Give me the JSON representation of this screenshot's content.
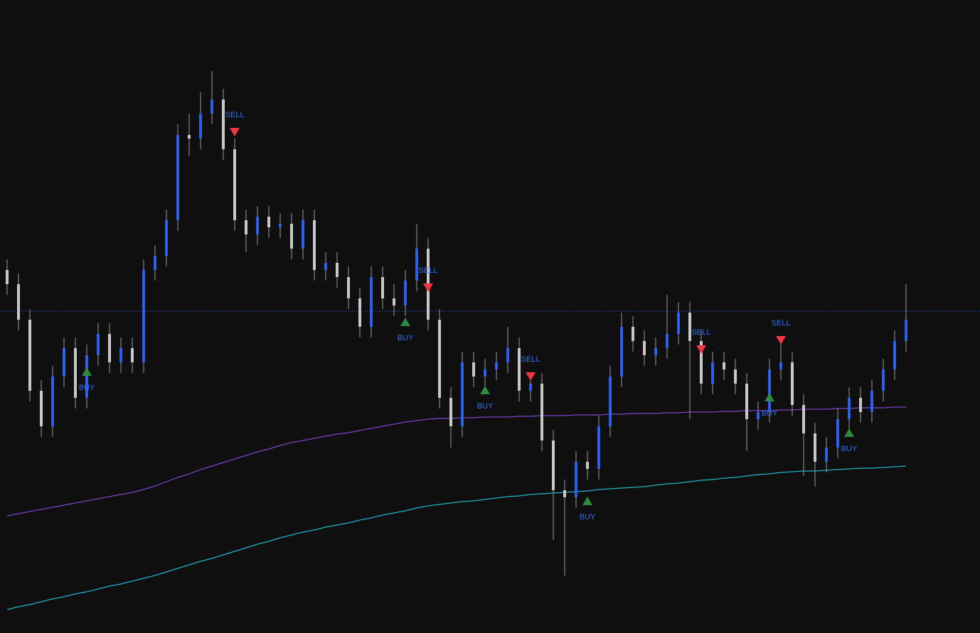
{
  "chart_data": {
    "type": "candlestick",
    "ylim": [
      0,
      891
    ],
    "up_color": "#2f5fe8",
    "down_color": "#c8c8c8",
    "open": [
      511,
      491,
      441,
      341,
      291,
      361,
      401,
      331,
      391,
      421,
      381,
      401,
      381,
      511,
      531,
      581,
      701,
      696,
      731,
      751,
      681,
      581,
      561,
      586,
      571,
      576,
      541,
      581,
      511,
      521,
      501,
      471,
      431,
      501,
      471,
      461,
      496,
      541,
      441,
      331,
      291,
      381,
      361,
      371,
      381,
      401,
      341,
      351,
      271,
      201,
      191,
      241,
      231,
      291,
      361,
      431,
      411,
      391,
      401,
      421,
      451,
      411,
      351,
      381,
      371,
      351,
      301,
      311,
      371,
      381,
      321,
      281,
      241,
      261,
      301,
      331,
      311,
      341,
      371,
      411
    ],
    "high": [
      526,
      506,
      456,
      356,
      376,
      416,
      416,
      406,
      436,
      436,
      416,
      416,
      526,
      546,
      596,
      716,
      731,
      761,
      791,
      766,
      696,
      596,
      601,
      601,
      591,
      591,
      596,
      596,
      536,
      536,
      516,
      486,
      516,
      516,
      491,
      511,
      576,
      556,
      456,
      346,
      396,
      396,
      386,
      396,
      431,
      416,
      366,
      366,
      286,
      216,
      256,
      256,
      306,
      376,
      451,
      446,
      426,
      416,
      476,
      466,
      466,
      426,
      396,
      396,
      386,
      366,
      326,
      386,
      411,
      396,
      336,
      296,
      276,
      316,
      346,
      346,
      356,
      386,
      426,
      491
    ],
    "low": [
      476,
      426,
      326,
      276,
      276,
      346,
      316,
      316,
      376,
      366,
      366,
      366,
      366,
      496,
      516,
      566,
      671,
      681,
      716,
      666,
      566,
      536,
      546,
      556,
      556,
      526,
      526,
      496,
      496,
      486,
      456,
      416,
      416,
      456,
      446,
      446,
      481,
      426,
      316,
      261,
      276,
      346,
      346,
      356,
      366,
      326,
      326,
      256,
      131,
      81,
      176,
      216,
      216,
      276,
      346,
      396,
      376,
      376,
      386,
      406,
      301,
      336,
      336,
      356,
      336,
      256,
      286,
      296,
      356,
      306,
      221,
      206,
      226,
      246,
      286,
      296,
      296,
      326,
      356,
      396
    ],
    "close": [
      491,
      441,
      341,
      291,
      361,
      401,
      331,
      391,
      421,
      381,
      401,
      381,
      511,
      531,
      581,
      701,
      696,
      731,
      751,
      681,
      581,
      561,
      586,
      571,
      576,
      541,
      581,
      511,
      521,
      501,
      471,
      431,
      501,
      471,
      461,
      496,
      541,
      441,
      331,
      291,
      381,
      361,
      371,
      381,
      401,
      341,
      351,
      271,
      201,
      191,
      241,
      231,
      291,
      361,
      431,
      411,
      391,
      401,
      421,
      451,
      411,
      351,
      381,
      371,
      351,
      301,
      311,
      371,
      381,
      321,
      281,
      241,
      261,
      301,
      331,
      311,
      341,
      371,
      411,
      441
    ],
    "series": [
      {
        "color": "#7b45c9",
        "values": [
          165,
          168,
          171,
          174,
          177,
          180,
          183,
          186,
          189,
          192,
          195,
          198,
          202,
          207,
          213,
          219,
          224,
          230,
          235,
          240,
          245,
          250,
          255,
          259,
          264,
          268,
          271,
          274,
          277,
          280,
          282,
          285,
          288,
          291,
          294,
          297,
          299,
          301,
          302,
          302,
          303,
          303,
          304,
          304,
          304,
          305,
          305,
          306,
          306,
          306,
          307,
          307,
          307,
          308,
          308,
          309,
          309,
          309,
          310,
          310,
          311,
          311,
          311,
          312,
          312,
          313,
          313,
          313,
          314,
          314,
          315,
          315,
          315,
          316,
          316,
          317,
          317,
          317,
          318,
          318
        ]
      },
      {
        "color": "#1fb5c9",
        "values": [
          33,
          37,
          40,
          44,
          48,
          51,
          55,
          58,
          62,
          66,
          69,
          73,
          77,
          81,
          86,
          91,
          96,
          101,
          105,
          110,
          115,
          120,
          125,
          129,
          134,
          138,
          142,
          145,
          149,
          152,
          155,
          159,
          162,
          166,
          169,
          172,
          176,
          179,
          181,
          183,
          185,
          186,
          188,
          190,
          192,
          193,
          195,
          196,
          197,
          198,
          199,
          200,
          202,
          203,
          204,
          205,
          206,
          208,
          210,
          211,
          213,
          215,
          216,
          218,
          219,
          221,
          223,
          224,
          226,
          227,
          228,
          228,
          229,
          230,
          231,
          232,
          232,
          233,
          234,
          235
        ]
      }
    ],
    "price_line": 453,
    "price_line_color": "#2f5fe8",
    "buy_color": "#2e8b3e",
    "sell_color": "#f23645",
    "signal_label_color": "#2f6fe8",
    "signals": [
      {
        "label": "BUY",
        "index": 7,
        "value": 368
      },
      {
        "label": "SELL",
        "index": 20,
        "value": 705
      },
      {
        "label": "BUY",
        "index": 35,
        "value": 438
      },
      {
        "label": "SELL",
        "index": 37,
        "value": 486
      },
      {
        "label": "BUY",
        "index": 42,
        "value": 342
      },
      {
        "label": "SELL",
        "index": 46,
        "value": 361
      },
      {
        "label": "BUY",
        "index": 51,
        "value": 186
      },
      {
        "label": "SELL",
        "index": 61,
        "value": 399
      },
      {
        "label": "BUY",
        "index": 67,
        "value": 332
      },
      {
        "label": "SELL",
        "index": 68,
        "value": 412
      },
      {
        "label": "BUY",
        "index": 74,
        "value": 282
      }
    ]
  }
}
